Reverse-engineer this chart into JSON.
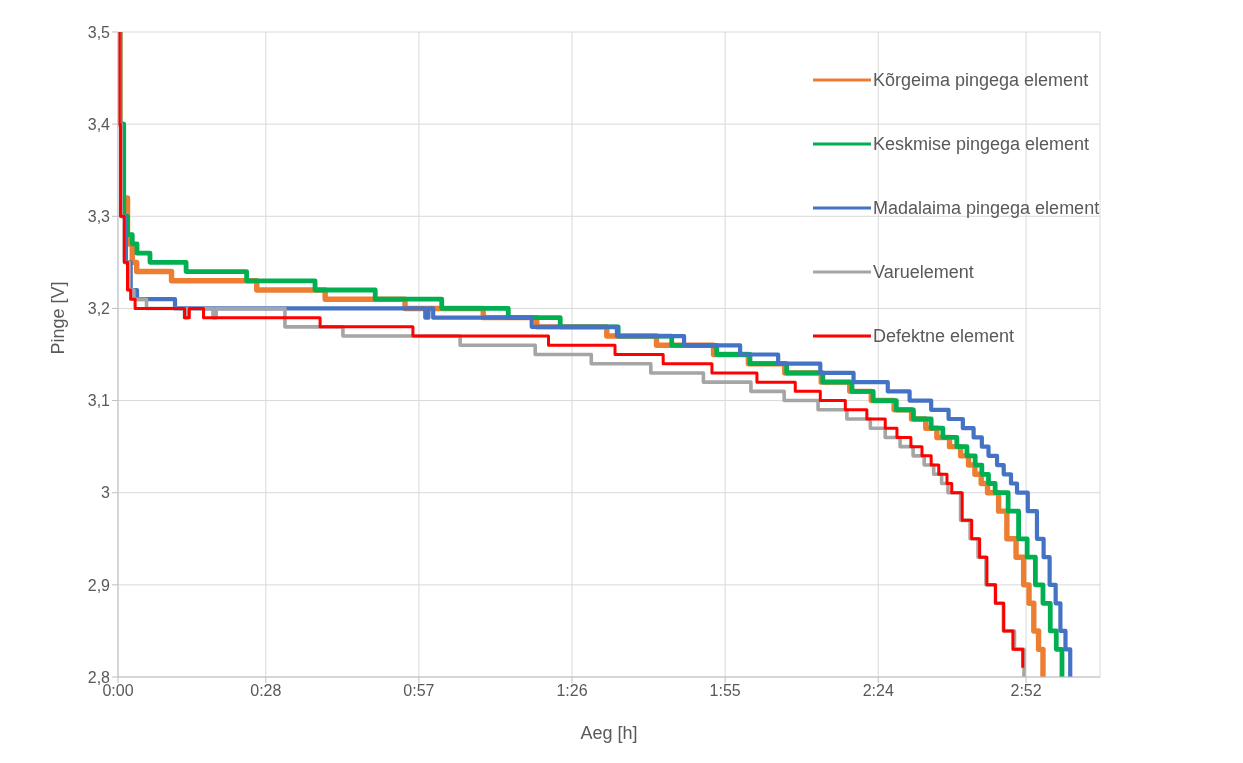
{
  "chart_data": {
    "type": "step",
    "xlabel": "Aeg [h]",
    "ylabel": "Pinge [V]",
    "xlim": [
      0,
      3.1
    ],
    "ylim": [
      2.8,
      3.5
    ],
    "xticks": [
      {
        "value": 0,
        "label": "0:00"
      },
      {
        "value": 0.466667,
        "label": "0:28"
      },
      {
        "value": 0.95,
        "label": "0:57"
      },
      {
        "value": 1.433333,
        "label": "1:26"
      },
      {
        "value": 1.916667,
        "label": "1:55"
      },
      {
        "value": 2.4,
        "label": "2:24"
      },
      {
        "value": 2.866667,
        "label": "2:52"
      }
    ],
    "yticks": [
      {
        "value": 2.8,
        "label": "2,8"
      },
      {
        "value": 2.9,
        "label": "2,9"
      },
      3,
      {
        "value": 3.1,
        "label": "3,1"
      },
      {
        "value": 3.2,
        "label": "3,2"
      },
      {
        "value": 3.3,
        "label": "3,3"
      },
      {
        "value": 3.4,
        "label": "3,4"
      },
      {
        "value": 3.5,
        "label": "3,5"
      }
    ],
    "grid": true,
    "legend": "right",
    "marker": "none",
    "line_style": "solid",
    "series": [
      {
        "name": "Kõrgeima pingega element",
        "color": "#ed7d31",
        "x": [
          0,
          0.006,
          0.015,
          0.03,
          0.045,
          0.059,
          0.169,
          0.438,
          0.654,
          0.906,
          1.153,
          1.322,
          1.543,
          1.7,
          1.88,
          1.99,
          2.105,
          2.22,
          2.31,
          2.378,
          2.45,
          2.505,
          2.55,
          2.585,
          2.625,
          2.66,
          2.685,
          2.705,
          2.725,
          2.745,
          2.78,
          2.806,
          2.835,
          2.859,
          2.876,
          2.891,
          2.906,
          2.92
        ],
        "values": [
          3.5,
          3.4,
          3.32,
          3.27,
          3.25,
          3.24,
          3.23,
          3.22,
          3.21,
          3.2,
          3.19,
          3.18,
          3.17,
          3.16,
          3.15,
          3.14,
          3.13,
          3.12,
          3.11,
          3.1,
          3.09,
          3.08,
          3.07,
          3.06,
          3.05,
          3.04,
          3.03,
          3.02,
          3.01,
          3.0,
          2.98,
          2.95,
          2.93,
          2.9,
          2.88,
          2.85,
          2.83,
          2.8
        ]
      },
      {
        "name": "Keskmise pingega element",
        "color": "#00b050",
        "x": [
          0,
          0.006,
          0.018,
          0.03,
          0.045,
          0.06,
          0.101,
          0.215,
          0.406,
          0.622,
          0.812,
          1.022,
          1.232,
          1.396,
          1.579,
          1.748,
          1.89,
          1.995,
          2.111,
          2.225,
          2.317,
          2.384,
          2.457,
          2.511,
          2.567,
          2.604,
          2.648,
          2.68,
          2.706,
          2.727,
          2.748,
          2.769,
          2.81,
          2.843,
          2.87,
          2.896,
          2.92,
          2.943,
          2.962,
          2.98
        ],
        "values": [
          3.5,
          3.4,
          3.3,
          3.28,
          3.27,
          3.26,
          3.25,
          3.24,
          3.23,
          3.22,
          3.21,
          3.2,
          3.19,
          3.18,
          3.17,
          3.16,
          3.15,
          3.14,
          3.13,
          3.12,
          3.11,
          3.1,
          3.09,
          3.08,
          3.07,
          3.06,
          3.05,
          3.04,
          3.03,
          3.02,
          3.01,
          3.0,
          2.98,
          2.95,
          2.93,
          2.9,
          2.88,
          2.85,
          2.83,
          2.8
        ]
      },
      {
        "name": "Madalaima pingega element",
        "color": "#4472c4",
        "x": [
          0,
          0.005,
          0.012,
          0.025,
          0.04,
          0.06,
          0.18,
          0.97,
          0.98,
          0.995,
          1.306,
          1.575,
          1.787,
          1.964,
          2.084,
          2.217,
          2.322,
          2.43,
          2.499,
          2.567,
          2.622,
          2.667,
          2.701,
          2.727,
          2.748,
          2.775,
          2.796,
          2.819,
          2.838,
          2.872,
          2.901,
          2.922,
          2.941,
          2.96,
          2.975,
          2.991,
          3.006
        ],
        "values": [
          3.5,
          3.4,
          3.3,
          3.25,
          3.22,
          3.21,
          3.2,
          3.19,
          3.2,
          3.19,
          3.18,
          3.17,
          3.16,
          3.15,
          3.14,
          3.13,
          3.12,
          3.11,
          3.1,
          3.09,
          3.08,
          3.07,
          3.06,
          3.05,
          3.04,
          3.03,
          3.02,
          3.01,
          3.0,
          2.98,
          2.95,
          2.93,
          2.9,
          2.88,
          2.85,
          2.83,
          2.8
        ]
      },
      {
        "name": "Varuelement",
        "color": "#a5a5a5",
        "x": [
          0,
          0.004,
          0.01,
          0.02,
          0.035,
          0.05,
          0.09,
          0.21,
          0.22,
          0.3,
          0.31,
          0.527,
          0.71,
          1.08,
          1.317,
          1.494,
          1.682,
          1.848,
          1.998,
          2.103,
          2.21,
          2.301,
          2.375,
          2.422,
          2.469,
          2.51,
          2.545,
          2.575,
          2.6,
          2.62,
          2.66,
          2.69,
          2.715,
          2.74,
          2.77,
          2.795,
          2.83,
          2.86
        ],
        "values": [
          3.5,
          3.4,
          3.3,
          3.25,
          3.22,
          3.21,
          3.2,
          3.19,
          3.2,
          3.19,
          3.2,
          3.18,
          3.17,
          3.16,
          3.15,
          3.14,
          3.13,
          3.12,
          3.11,
          3.1,
          3.09,
          3.08,
          3.07,
          3.06,
          3.05,
          3.04,
          3.03,
          3.02,
          3.01,
          3.0,
          2.97,
          2.95,
          2.93,
          2.9,
          2.88,
          2.85,
          2.83,
          2.8
        ]
      },
      {
        "name": "Defektne element",
        "color": "#ff0000",
        "x": [
          0,
          0.004,
          0.008,
          0.02,
          0.03,
          0.04,
          0.054,
          0.21,
          0.225,
          0.27,
          0.638,
          0.931,
          1.359,
          1.569,
          1.721,
          1.875,
          2.017,
          2.138,
          2.217,
          2.296,
          2.364,
          2.422,
          2.459,
          2.503,
          2.538,
          2.567,
          2.591,
          2.617,
          2.632,
          2.665,
          2.695,
          2.72,
          2.743,
          2.77,
          2.796,
          2.825,
          2.856
        ],
        "values": [
          3.5,
          3.4,
          3.3,
          3.25,
          3.22,
          3.21,
          3.2,
          3.19,
          3.2,
          3.19,
          3.18,
          3.17,
          3.16,
          3.15,
          3.14,
          3.13,
          3.12,
          3.11,
          3.1,
          3.09,
          3.08,
          3.07,
          3.06,
          3.05,
          3.04,
          3.03,
          3.02,
          3.01,
          3.0,
          2.97,
          2.95,
          2.93,
          2.9,
          2.88,
          2.85,
          2.83,
          2.81
        ]
      }
    ]
  }
}
